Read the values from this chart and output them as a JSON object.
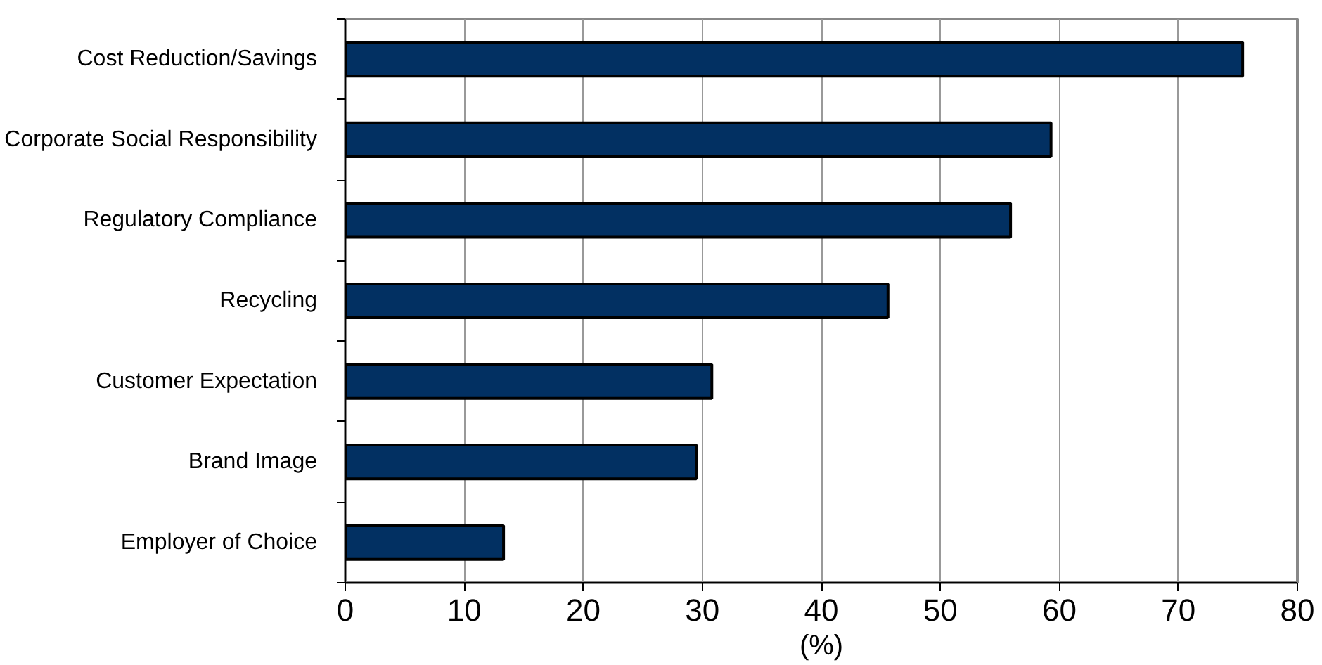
{
  "chart_data": {
    "type": "bar",
    "orientation": "horizontal",
    "categories": [
      "Cost Reduction/Savings",
      "Corporate Social Responsibility",
      "Regulatory Compliance",
      "Recycling",
      "Customer Expectation",
      "Brand Image",
      "Employer of Choice"
    ],
    "values": [
      75.4,
      59.3,
      55.9,
      45.6,
      30.8,
      29.5,
      13.3
    ],
    "color": "#023062",
    "xlabel": "(%)",
    "xlim": [
      0,
      80
    ],
    "xticks": [
      0,
      10,
      20,
      30,
      40,
      50,
      60,
      70,
      80
    ],
    "grid": "x"
  }
}
